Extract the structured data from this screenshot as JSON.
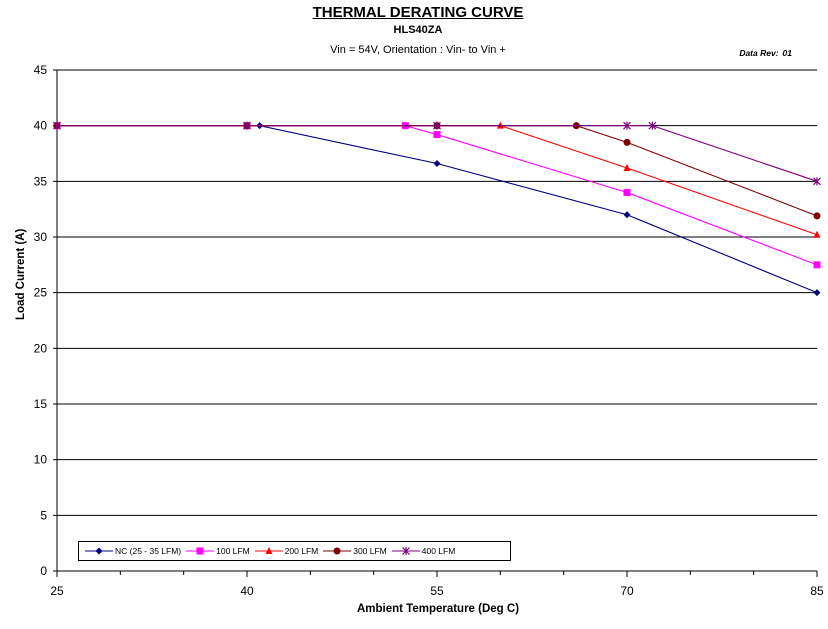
{
  "header": {
    "title": "THERMAL DERATING CURVE",
    "subtitle": "HLS40ZA",
    "condition": "Vin = 54V, Orientation : Vin- to Vin +",
    "data_rev_label": "Data Rev:",
    "data_rev_value": "01"
  },
  "chart_data": {
    "type": "line",
    "xlabel": "Ambient Temperature (Deg C)",
    "ylabel": "Load Current (A)",
    "xlim": [
      25,
      85
    ],
    "ylim": [
      0,
      45
    ],
    "xticks": [
      25,
      40,
      55,
      70,
      85
    ],
    "yticks": [
      0,
      5,
      10,
      15,
      20,
      25,
      30,
      35,
      40,
      45
    ],
    "grid": true,
    "legend_position": "bottom-left",
    "series": [
      {
        "name": "NC (25 - 35 LFM)",
        "color": "#000080",
        "marker": "diamond",
        "x": [
          25,
          40,
          41,
          55,
          70,
          85
        ],
        "y": [
          40,
          40,
          40,
          36.6,
          32,
          25
        ]
      },
      {
        "name": "100 LFM",
        "color": "#FF00FF",
        "marker": "square",
        "x": [
          25,
          40,
          52.5,
          55,
          70,
          85
        ],
        "y": [
          40,
          40,
          40,
          39.2,
          34,
          27.5
        ]
      },
      {
        "name": "200 LFM",
        "color": "#FF0000",
        "marker": "triangle",
        "x": [
          25,
          40,
          55,
          60,
          70,
          85
        ],
        "y": [
          40,
          40,
          40,
          40,
          36.2,
          30.2
        ]
      },
      {
        "name": "300 LFM",
        "color": "#800000",
        "marker": "circle",
        "x": [
          25,
          40,
          55,
          66,
          70,
          85
        ],
        "y": [
          40,
          40,
          40,
          40,
          38.5,
          31.9
        ]
      },
      {
        "name": "400 LFM",
        "color": "#800080",
        "marker": "star",
        "x": [
          25,
          40,
          55,
          70,
          72,
          85
        ],
        "y": [
          40,
          40,
          40,
          40,
          40,
          35
        ]
      }
    ]
  }
}
